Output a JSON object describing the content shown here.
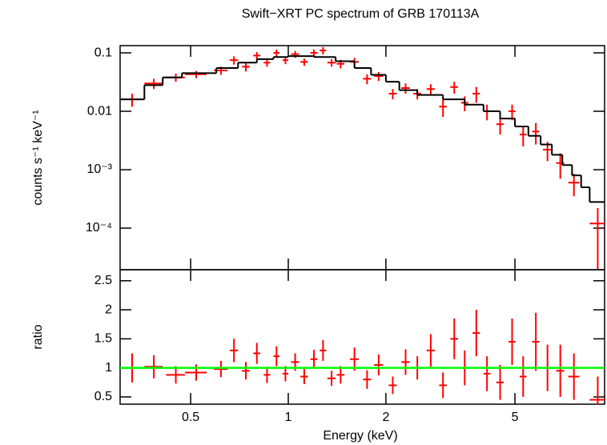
{
  "chart_data": [
    {
      "type": "spectrum",
      "title": "Swift−XRT PC spectrum of GRB 170113A",
      "y_label": "counts s⁻¹ keV⁻¹",
      "xscale": "log",
      "yscale": "log",
      "xlim": [
        0.303,
        9.45
      ],
      "ylim": [
        1.94e-05,
        0.133
      ],
      "yticks": [
        0.1,
        0.01,
        {
          "value": 0.001,
          "label": "10⁻³"
        },
        {
          "value": 0.0001,
          "label": "10⁻⁴"
        }
      ],
      "series": [
        {
          "color": "#ff0000",
          "x": [
            0.33,
            0.385,
            0.45,
            0.52,
            0.62,
            0.68,
            0.74,
            0.8,
            0.86,
            0.92,
            0.98,
            1.05,
            1.12,
            1.2,
            1.28,
            1.36,
            1.45,
            1.6,
            1.75,
            1.9,
            2.1,
            2.3,
            2.5,
            2.75,
            3.0,
            3.25,
            3.5,
            3.8,
            4.1,
            4.5,
            4.9,
            5.3,
            5.8,
            6.3,
            6.9,
            7.6,
            9.0
          ],
          "xerr": [
            0.03,
            0.025,
            0.03,
            0.04,
            0.03,
            0.02,
            0.02,
            0.02,
            0.02,
            0.02,
            0.02,
            0.03,
            0.03,
            0.03,
            0.03,
            0.04,
            0.04,
            0.05,
            0.05,
            0.06,
            0.06,
            0.07,
            0.07,
            0.08,
            0.08,
            0.09,
            0.09,
            0.1,
            0.1,
            0.12,
            0.12,
            0.13,
            0.15,
            0.2,
            0.2,
            0.3,
            0.5
          ],
          "values": [
            0.016,
            0.03,
            0.038,
            0.043,
            0.05,
            0.075,
            0.058,
            0.09,
            0.068,
            0.1,
            0.075,
            0.095,
            0.07,
            0.1,
            0.11,
            0.068,
            0.065,
            0.07,
            0.036,
            0.04,
            0.02,
            0.025,
            0.02,
            0.024,
            0.012,
            0.026,
            0.014,
            0.02,
            0.01,
            0.006,
            0.01,
            0.004,
            0.0045,
            0.0022,
            0.0013,
            0.0006,
            0.00012
          ],
          "yerr": [
            0.004,
            0.006,
            0.006,
            0.006,
            0.008,
            0.012,
            0.01,
            0.013,
            0.01,
            0.014,
            0.011,
            0.013,
            0.01,
            0.014,
            0.016,
            0.01,
            0.011,
            0.012,
            0.007,
            0.007,
            0.004,
            0.005,
            0.004,
            0.005,
            0.004,
            0.006,
            0.004,
            0.006,
            0.003,
            0.002,
            0.003,
            0.0015,
            0.0018,
            0.0008,
            0.0006,
            0.00025,
            0.0001
          ]
        },
        {
          "color": "#000000",
          "bins": [
            0.3,
            0.36,
            0.41,
            0.47,
            0.6,
            0.7,
            0.8,
            0.9,
            1.0,
            1.2,
            1.4,
            1.6,
            1.8,
            2.0,
            2.2,
            2.5,
            3.0,
            3.5,
            4.0,
            4.5,
            5.0,
            5.5,
            6.0,
            6.5,
            7.0,
            7.5,
            8.0,
            8.5,
            9.5
          ],
          "values": [
            0.016,
            0.028,
            0.038,
            0.045,
            0.055,
            0.068,
            0.078,
            0.085,
            0.088,
            0.085,
            0.072,
            0.055,
            0.042,
            0.032,
            0.023,
            0.019,
            0.016,
            0.013,
            0.01,
            0.0075,
            0.0055,
            0.0038,
            0.0027,
            0.0018,
            0.0012,
            0.0008,
            0.0005,
            0.00028
          ]
        }
      ]
    },
    {
      "type": "ratio",
      "x_label": "Energy (keV)",
      "y_label": "ratio",
      "xscale": "log",
      "xlim": [
        0.303,
        9.45
      ],
      "ylim": [
        0.375,
        2.69
      ],
      "xticks": [
        0.5,
        1,
        2,
        5
      ],
      "yticks": [
        0.5,
        1,
        1.5,
        2,
        2.5
      ],
      "reference_line": {
        "value": 1,
        "color": "#00ff00"
      },
      "series": [
        {
          "color": "#ff0000",
          "x": [
            0.33,
            0.385,
            0.45,
            0.52,
            0.62,
            0.68,
            0.74,
            0.8,
            0.86,
            0.92,
            0.98,
            1.05,
            1.12,
            1.2,
            1.28,
            1.36,
            1.45,
            1.6,
            1.75,
            1.9,
            2.1,
            2.3,
            2.5,
            2.75,
            3.0,
            3.25,
            3.5,
            3.8,
            4.1,
            4.5,
            4.9,
            5.3,
            5.8,
            6.3,
            6.9,
            7.6,
            9.0
          ],
          "xerr": [
            0.03,
            0.025,
            0.03,
            0.04,
            0.03,
            0.02,
            0.02,
            0.02,
            0.02,
            0.02,
            0.02,
            0.03,
            0.03,
            0.03,
            0.03,
            0.04,
            0.04,
            0.05,
            0.05,
            0.06,
            0.06,
            0.07,
            0.07,
            0.08,
            0.08,
            0.09,
            0.09,
            0.1,
            0.1,
            0.12,
            0.12,
            0.13,
            0.15,
            0.2,
            0.2,
            0.3,
            0.5
          ],
          "values": [
            1.0,
            1.02,
            0.88,
            0.92,
            0.98,
            1.3,
            0.95,
            1.25,
            0.88,
            1.2,
            0.9,
            1.1,
            0.85,
            1.15,
            1.3,
            0.82,
            0.88,
            1.15,
            0.8,
            1.05,
            0.7,
            1.1,
            1.0,
            1.3,
            0.7,
            1.5,
            1.0,
            1.6,
            0.9,
            0.75,
            1.45,
            0.85,
            1.45,
            1.0,
            0.95,
            0.85,
            0.45
          ],
          "yerr": [
            0.25,
            0.2,
            0.15,
            0.14,
            0.14,
            0.2,
            0.15,
            0.18,
            0.14,
            0.17,
            0.13,
            0.15,
            0.13,
            0.16,
            0.18,
            0.13,
            0.15,
            0.2,
            0.16,
            0.18,
            0.15,
            0.22,
            0.2,
            0.28,
            0.22,
            0.35,
            0.3,
            0.4,
            0.3,
            0.3,
            0.4,
            0.35,
            0.5,
            0.4,
            0.45,
            0.4,
            0.4
          ]
        }
      ]
    }
  ]
}
